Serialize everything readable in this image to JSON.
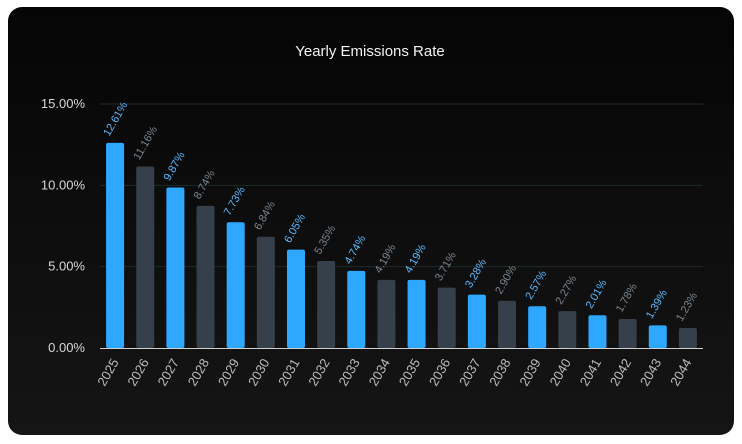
{
  "colors": {
    "accent": "#2ea8ff",
    "secondary": "#35404a",
    "accent_label": "#5cbaff",
    "secondary_label": "#7a8691",
    "grid": "#1f2a2a",
    "baseline": "#cfcfcf"
  },
  "chart_data": {
    "type": "bar",
    "title": "Yearly Emissions Rate",
    "xlabel": "",
    "ylabel": "",
    "ylim": [
      0,
      15
    ],
    "yticks": [
      "0.00%",
      "5.00%",
      "10.00%",
      "15.00%"
    ],
    "grid": true,
    "categories": [
      "2025",
      "2026",
      "2027",
      "2028",
      "2029",
      "2030",
      "2031",
      "2032",
      "2033",
      "2034",
      "2035",
      "2036",
      "2037",
      "2038",
      "2039",
      "2040",
      "2041",
      "2042",
      "2043",
      "2044"
    ],
    "values": [
      12.61,
      11.16,
      9.87,
      8.74,
      7.73,
      6.84,
      6.05,
      5.35,
      4.74,
      4.19,
      4.19,
      3.71,
      3.28,
      2.9,
      2.57,
      2.27,
      2.01,
      1.78,
      1.39,
      1.23
    ],
    "labels": [
      "12.61%",
      "11.16%",
      "9.87%",
      "8.74%",
      "7.73%",
      "6.84%",
      "6.05%",
      "5.35%",
      "4.74%",
      "4.19%",
      "4.19%",
      "3.71%",
      "3.28%",
      "2.90%",
      "2.57%",
      "2.27%",
      "2.01%",
      "1.78%",
      "1.39%",
      "1.23%"
    ]
  }
}
